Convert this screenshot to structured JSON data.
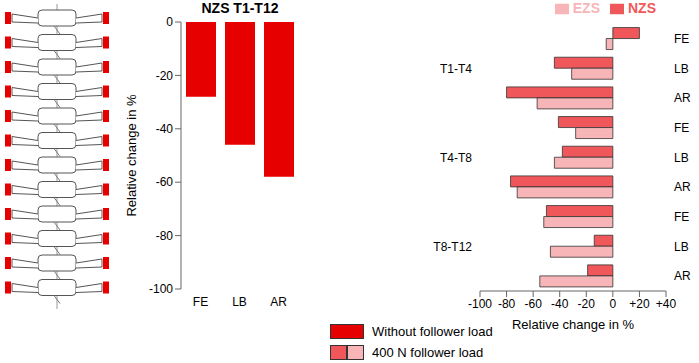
{
  "chart_data": [
    {
      "type": "bar",
      "title": "NZS T1-T12",
      "ylabel": "Relative change in %",
      "categories": [
        "FE",
        "LB",
        "AR"
      ],
      "series": [
        {
          "name": "Without follower load",
          "color": "#e60000",
          "values": [
            -28,
            -46,
            -58
          ]
        }
      ],
      "ylim": [
        -100,
        0
      ],
      "yticks": [
        0,
        -20,
        -40,
        -60,
        -80,
        -100
      ],
      "legend": "bottom"
    },
    {
      "type": "bar",
      "orientation": "horizontal",
      "xlabel": "Relative change in %",
      "groups": [
        "T1-T4",
        "T4-T8",
        "T8-T12"
      ],
      "categories": [
        "FE",
        "LB",
        "AR",
        "FE",
        "LB",
        "AR",
        "FE",
        "LB",
        "AR"
      ],
      "series": [
        {
          "name": "NZS",
          "color": "#f0575a",
          "values": [
            20,
            -44,
            -80,
            -41,
            -38,
            -77,
            -50,
            -14,
            -19
          ]
        },
        {
          "name": "EZS",
          "color": "#f7b5b7",
          "values": [
            -5,
            -31,
            -57,
            -28,
            -44,
            -72,
            -52,
            -47,
            -55
          ]
        }
      ],
      "xlim": [
        -100,
        40
      ],
      "xticks": [
        -100,
        -80,
        -60,
        -40,
        -20,
        0,
        {
          "value": 20,
          "label": "+20"
        },
        {
          "value": 40,
          "label": "+40"
        }
      ],
      "annotation": "400 N follower load",
      "legend": "top"
    }
  ]
}
